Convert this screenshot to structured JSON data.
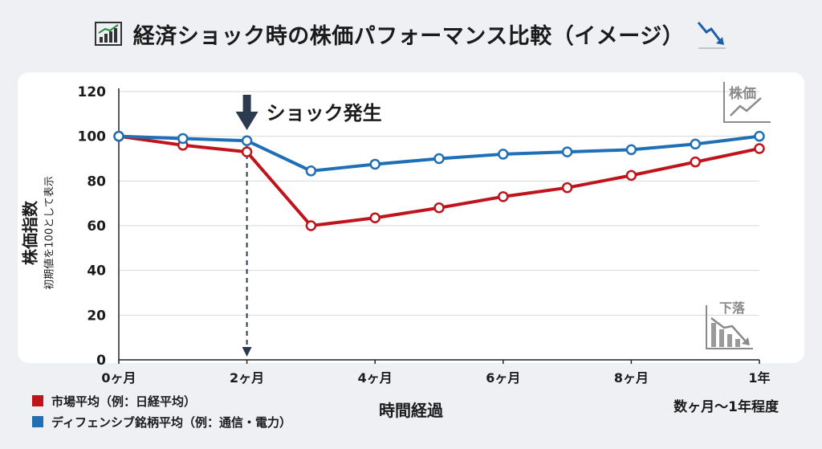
{
  "title": "経済ショック時の株価パフォーマンス比較（イメージ）",
  "icons": {
    "title_left": "bar-chart-up-icon",
    "title_right": "trend-down-arrow-icon",
    "corner_top": "stock-up-icon",
    "corner_bottom": "decline-icon"
  },
  "corner_labels": {
    "top": "株価",
    "bottom": "下落"
  },
  "colors": {
    "market": "#c0141c",
    "defensive": "#1f6fb6",
    "grid": "#d7d7d7",
    "annotation": "#2b3a4f"
  },
  "chart_data": {
    "type": "line",
    "title": "経済ショック時の株価パフォーマンス比較（イメージ）",
    "xlabel": "時間経過",
    "xlabel_note": "数ヶ月〜1年程度",
    "ylabel": "株価指数",
    "ylabel_sub": "初期値を100として表示",
    "x": [
      0,
      1,
      2,
      3,
      4,
      5,
      6,
      7,
      8,
      9,
      10
    ],
    "x_ticks": [
      {
        "x": 0,
        "label": "0ヶ月"
      },
      {
        "x": 2,
        "label": "2ヶ月"
      },
      {
        "x": 4,
        "label": "4ヶ月"
      },
      {
        "x": 6,
        "label": "6ヶ月"
      },
      {
        "x": 8,
        "label": "8ヶ月"
      },
      {
        "x": 10,
        "label": "1年"
      }
    ],
    "ylim": [
      0,
      120
    ],
    "y_ticks": [
      0,
      20,
      40,
      60,
      80,
      100,
      120
    ],
    "grid": true,
    "series": [
      {
        "name": "市場平均（例：日経平均）",
        "color": "#c0141c",
        "values": [
          100,
          96,
          93,
          60,
          63.5,
          68,
          73,
          77,
          82.5,
          88.5,
          94.5
        ]
      },
      {
        "name": "ディフェンシブ銘柄平均（例：通信・電力）",
        "color": "#1f6fb6",
        "values": [
          100,
          99,
          98,
          84.5,
          87.5,
          90,
          92,
          93,
          94,
          96.5,
          100
        ]
      }
    ],
    "annotation": {
      "x": 2,
      "label": "ショック発生"
    },
    "legend_position": "bottom-left"
  }
}
